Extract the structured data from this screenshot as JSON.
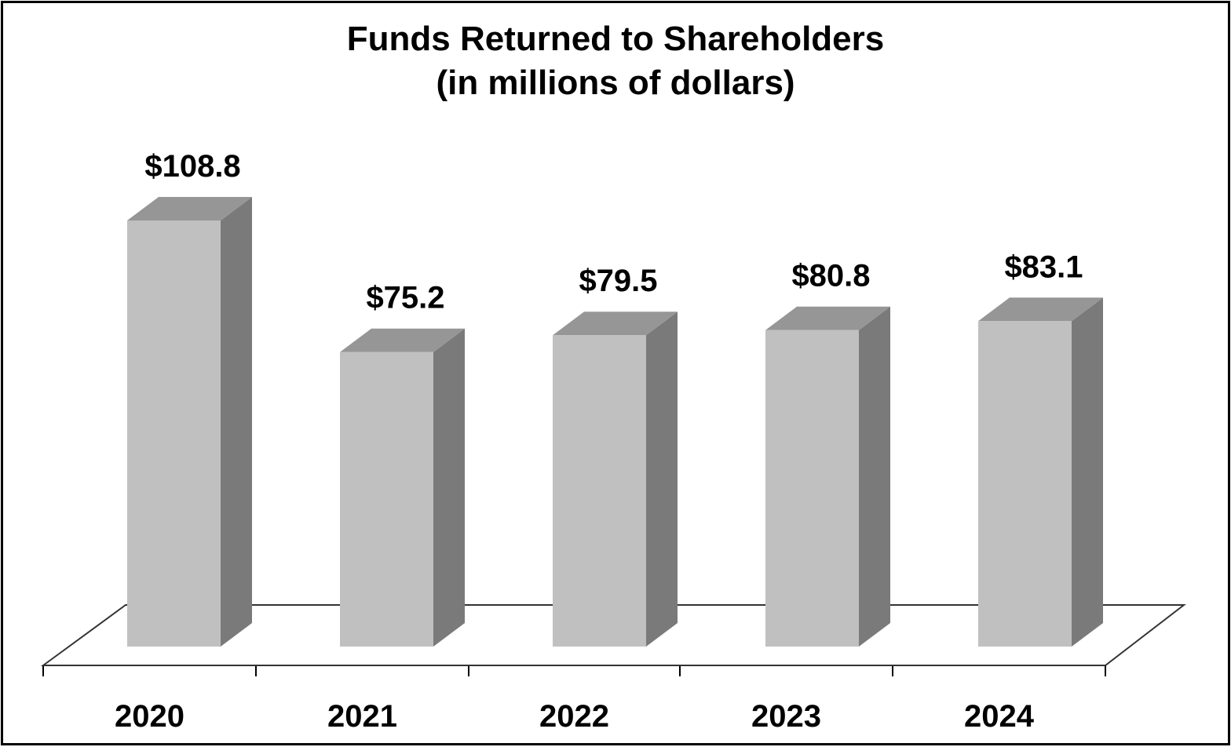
{
  "chart_data": {
    "type": "bar",
    "title": "Funds Returned to Shareholders",
    "subtitle": "(in millions of dollars)",
    "categories": [
      "2020",
      "2021",
      "2022",
      "2023",
      "2024"
    ],
    "values": [
      108.8,
      75.2,
      79.5,
      80.8,
      83.1
    ],
    "data_labels": [
      "$108.8",
      "$75.2",
      "$79.5",
      "$80.8",
      "$83.1"
    ],
    "xlabel": "",
    "ylabel": "",
    "grid": false,
    "legend": null,
    "style": "3d-column",
    "colors": {
      "front": "#c0c0c0",
      "top": "#969696",
      "side": "#7a7a7a"
    }
  }
}
